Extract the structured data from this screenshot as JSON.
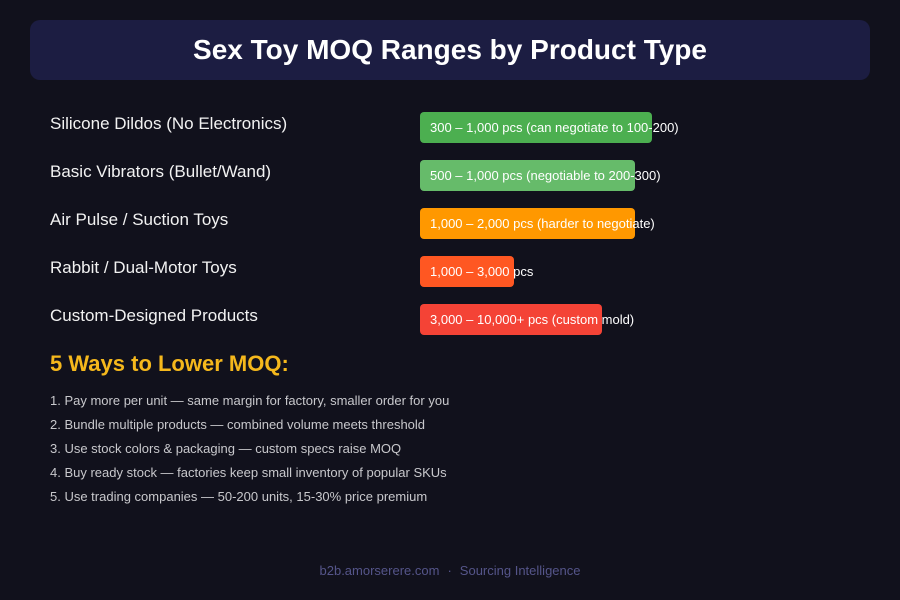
{
  "header": {
    "title": "Sex Toy MOQ Ranges by Product Type"
  },
  "rows": [
    {
      "label": "Silicone Dildos (No Electronics)",
      "range": "300 – 1,000 pcs (can negotiate to 100-200)"
    },
    {
      "label": "Basic Vibrators (Bullet/Wand)",
      "range": "500 – 1,000 pcs (negotiable to 200-300)"
    },
    {
      "label": "Air Pulse / Suction Toys",
      "range": "1,000 – 2,000 pcs (harder to negotiate)"
    },
    {
      "label": "Rabbit / Dual-Motor Toys",
      "range": "1,000 – 3,000 pcs"
    },
    {
      "label": "Custom-Designed Products",
      "range": "3,000 – 10,000+ pcs (custom mold)"
    }
  ],
  "tips": {
    "title": "5 Ways to Lower MOQ:",
    "items": [
      "1. Pay more per unit — same margin for factory, smaller order for you",
      "2. Bundle multiple products — combined volume meets threshold",
      "3. Use stock colors & packaging — custom specs raise MOQ",
      "4. Buy ready stock — factories keep small inventory of popular SKUs",
      "5. Use trading companies — 50-200 units, 15-30% price premium"
    ]
  },
  "footer": {
    "site": "b2b.amorserere.com",
    "separator": "·",
    "tagline": "Sourcing Intelligence"
  }
}
